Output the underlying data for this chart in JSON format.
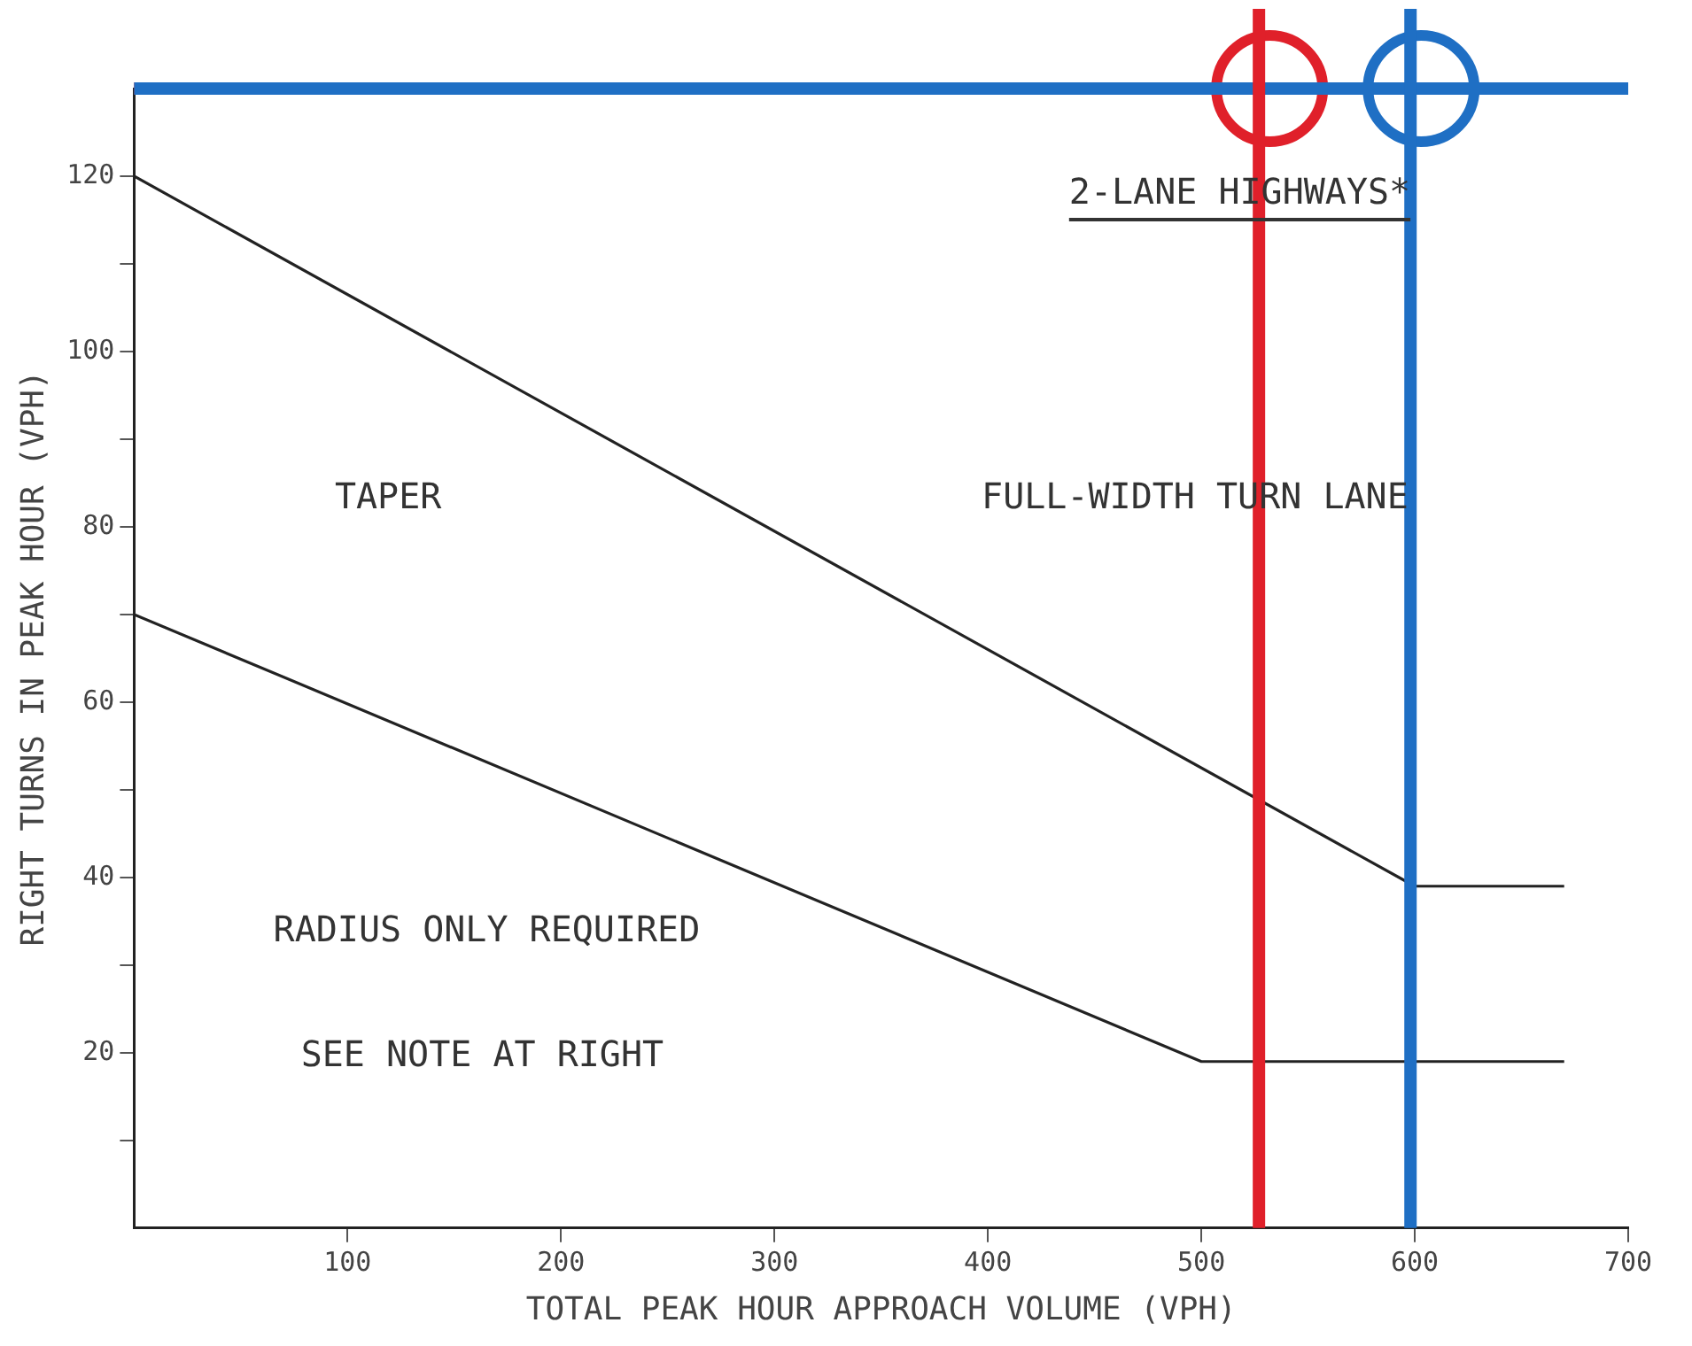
{
  "chart_data": {
    "type": "line",
    "xlabel": "TOTAL PEAK HOUR APPROACH VOLUME (VPH)",
    "ylabel": "RIGHT TURNS IN PEAK HOUR (VPH)",
    "xlim": [
      0,
      700
    ],
    "xticks": [
      100,
      200,
      300,
      400,
      500,
      600,
      700
    ],
    "ylim": [
      0,
      130
    ],
    "yticks": [
      {
        "value": 10,
        "label": null
      },
      20,
      {
        "value": 30,
        "label": null
      },
      40,
      {
        "value": 50,
        "label": null
      },
      60,
      {
        "value": 70,
        "label": null
      },
      80,
      {
        "value": 90,
        "label": null
      },
      100,
      {
        "value": 110,
        "label": null
      },
      120
    ],
    "grid": false,
    "legend": false,
    "line_style": "solid",
    "marker": "none",
    "series": [
      {
        "color": "#222222",
        "x": [
          0,
          600,
          670
        ],
        "values": [
          120,
          39,
          39
        ]
      },
      {
        "color": "#222222",
        "x": [
          0,
          500,
          670
        ],
        "values": [
          70,
          19,
          19
        ]
      },
      {
        "type": "scatter",
        "marker": "circle",
        "color": "#e0202a",
        "x": [
          532
        ],
        "values": [
          130
        ]
      },
      {
        "type": "scatter",
        "marker": "circle",
        "color": "#1f6fc4",
        "x": [
          603
        ],
        "values": [
          130
        ]
      }
    ],
    "ref_lines": [
      {
        "axis": "y",
        "value": 130,
        "color": "#e0202a"
      },
      {
        "axis": "y",
        "value": 130,
        "color": "#1f6fc4"
      },
      {
        "axis": "x",
        "value": 527,
        "color": "#e0202a"
      },
      {
        "axis": "x",
        "value": 598,
        "color": "#1f6fc4"
      }
    ],
    "annotations": [
      "2-LANE HIGHWAYS*",
      "TAPER",
      "FULL-WIDTH TURN LANE",
      "RADIUS ONLY REQUIRED",
      "SEE NOTE AT RIGHT"
    ]
  }
}
